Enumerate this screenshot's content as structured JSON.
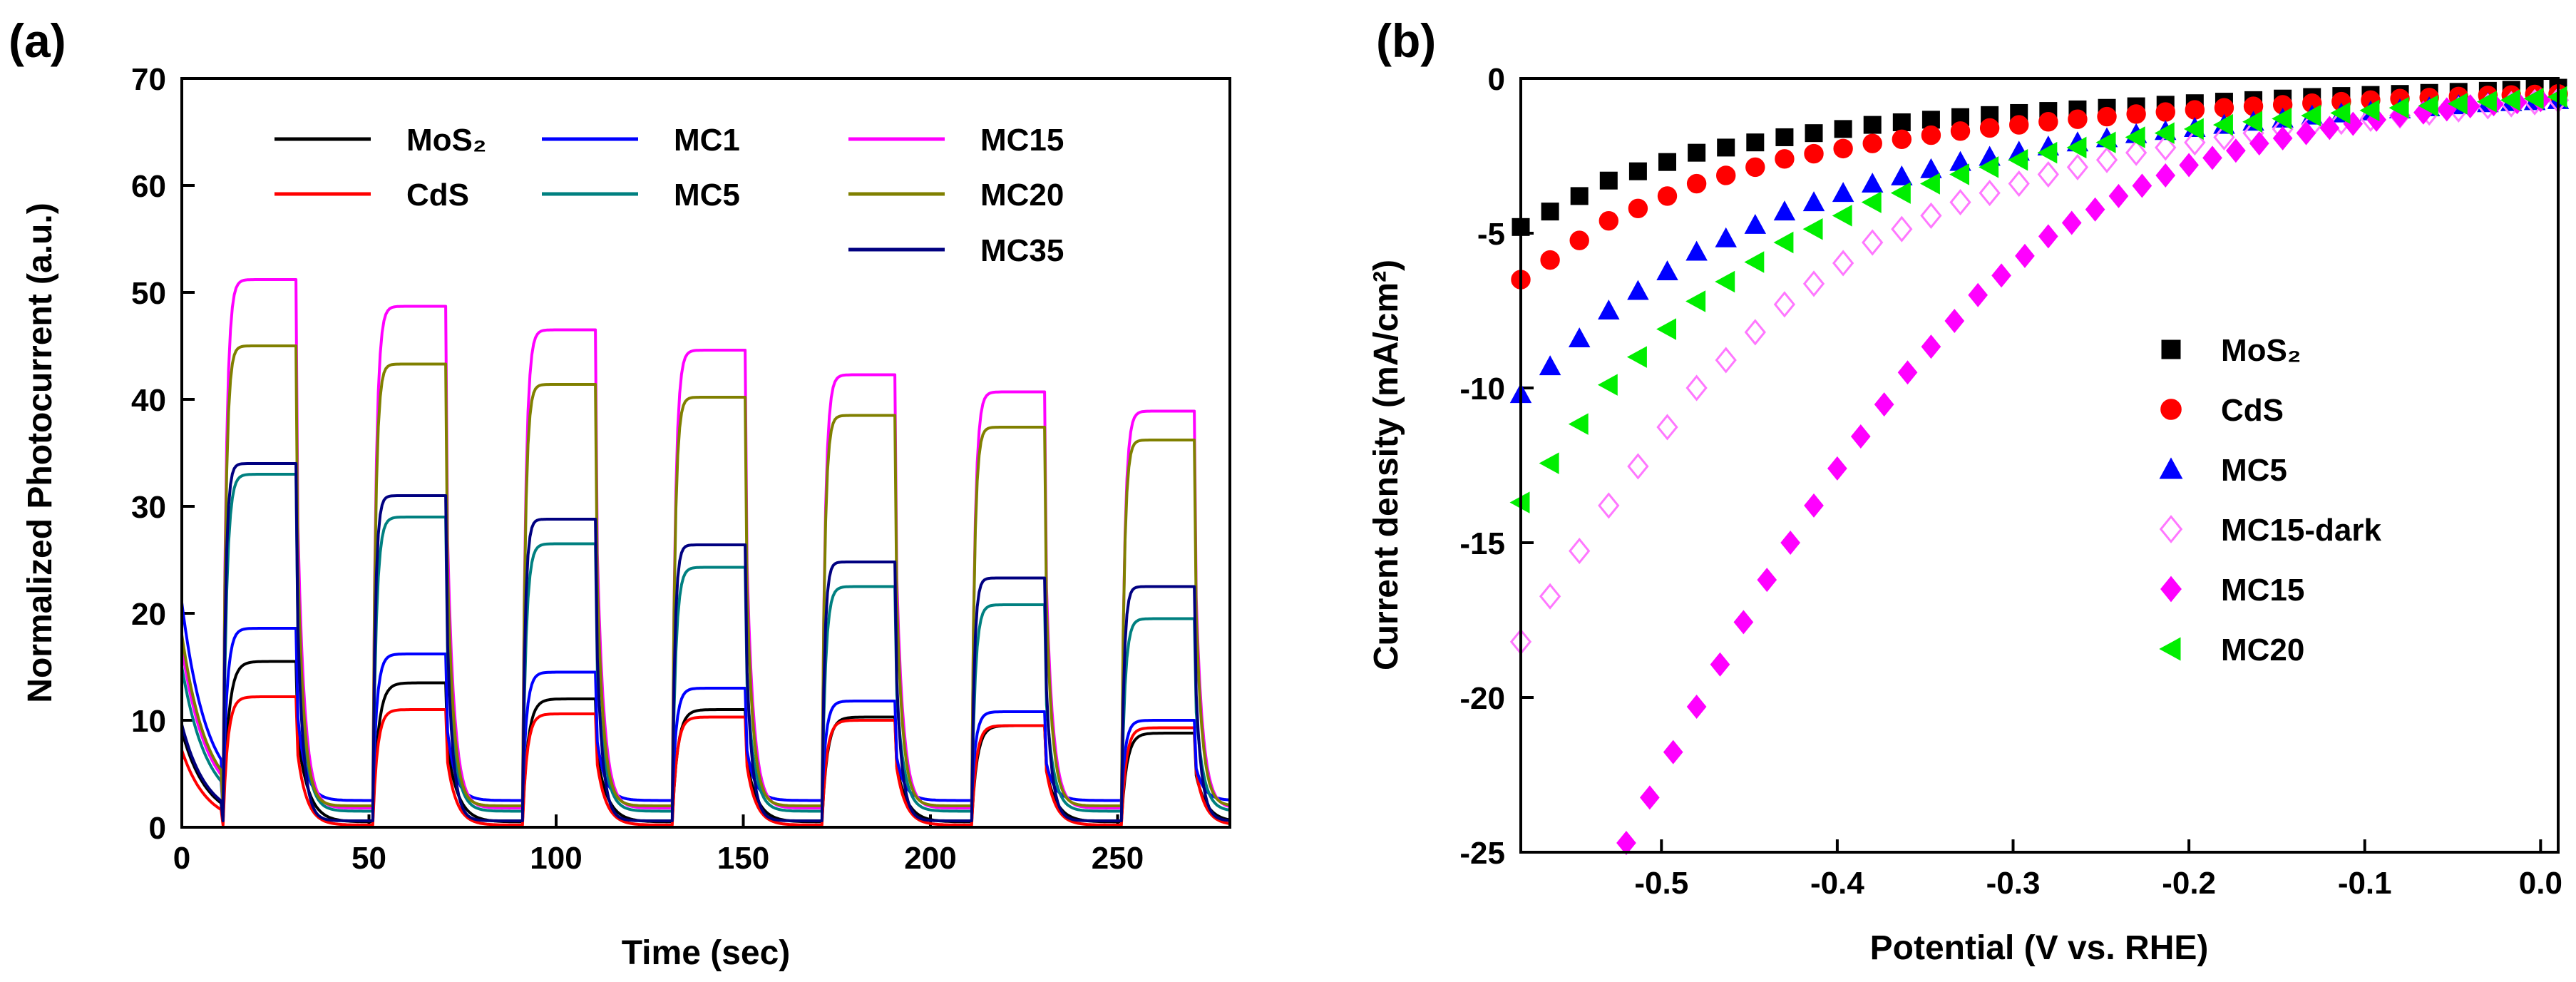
{
  "chart_data": [
    {
      "panel_label": "(a)",
      "type": "line",
      "title": "",
      "xlabel": "Time (sec)",
      "ylabel": "Normalized Photocurrent (a.u.)",
      "xlim": [
        0,
        280
      ],
      "ylim": [
        0,
        70
      ],
      "x_ticks": [
        0,
        50,
        100,
        150,
        200,
        250
      ],
      "x_tick_labels": [
        "0",
        "50",
        "100",
        "150",
        "200",
        "250"
      ],
      "y_ticks": [
        0,
        10,
        20,
        30,
        40,
        50,
        60,
        70
      ],
      "y_tick_labels": [
        "0",
        "10",
        "20",
        "30",
        "40",
        "50",
        "60",
        "70"
      ],
      "legend_position": "top",
      "light_on_sec": [
        [
          11,
          31
        ],
        [
          51,
          71
        ],
        [
          91,
          111
        ],
        [
          131,
          151
        ],
        [
          171,
          191
        ],
        [
          211,
          231
        ],
        [
          251,
          271
        ]
      ],
      "series": [
        {
          "name": "MoS₂",
          "color": "#000000",
          "off_level": 0.5,
          "on_values": [
            15.5,
            13.5,
            12.0,
            11.0,
            10.3,
            9.5,
            8.8
          ]
        },
        {
          "name": "CdS",
          "color": "#ff0000",
          "off_level": 0.2,
          "on_values": [
            12.2,
            11.0,
            10.6,
            10.3,
            10.0,
            9.5,
            9.3
          ]
        },
        {
          "name": "MC1",
          "color": "#0000ff",
          "off_level": 2.5,
          "on_values": [
            18.6,
            16.2,
            14.5,
            13.0,
            11.8,
            10.8,
            10.0
          ]
        },
        {
          "name": "MC5",
          "color": "#008080",
          "off_level": 1.5,
          "on_values": [
            33.0,
            29.0,
            26.5,
            24.3,
            22.5,
            20.8,
            19.5
          ]
        },
        {
          "name": "MC15",
          "color": "#ff00ff",
          "off_level": 1.8,
          "on_values": [
            51.2,
            48.7,
            46.5,
            44.6,
            42.3,
            40.7,
            38.9
          ]
        },
        {
          "name": "MC20",
          "color": "#808000",
          "off_level": 2.0,
          "on_values": [
            45.0,
            43.3,
            41.4,
            40.2,
            38.5,
            37.4,
            36.2
          ]
        },
        {
          "name": "MC35",
          "color": "#000080",
          "off_level": 0.6,
          "on_values": [
            34.0,
            31.0,
            28.8,
            26.4,
            24.8,
            23.3,
            22.5
          ]
        }
      ]
    },
    {
      "panel_label": "(b)",
      "type": "scatter",
      "title": "",
      "xlabel": "Potential (V vs. RHE)",
      "ylabel": "Current density (mA/cm²)",
      "xlim": [
        -0.58,
        0.01
      ],
      "ylim": [
        -25,
        0
      ],
      "x_ticks": [
        -0.5,
        -0.4,
        -0.3,
        -0.2,
        -0.1,
        0.0
      ],
      "x_tick_labels": [
        "-0.5",
        "-0.4",
        "-0.3",
        "-0.2",
        "-0.1",
        "0.0"
      ],
      "y_ticks": [
        0,
        -5,
        -10,
        -15,
        -20,
        -25
      ],
      "y_tick_labels": [
        "0",
        "-5",
        "-10",
        "-15",
        "-20",
        "-25"
      ],
      "legend_position": "center-right",
      "series": [
        {
          "name": "MoS₂",
          "marker": "square",
          "color": "#000000",
          "filled": true,
          "x": [
            -0.58,
            -0.53,
            -0.48,
            -0.43,
            -0.38,
            -0.33,
            -0.28,
            -0.23,
            -0.18,
            -0.13,
            -0.08,
            -0.03,
            0.01
          ],
          "y": [
            -4.8,
            -3.3,
            -2.4,
            -1.9,
            -1.5,
            -1.25,
            -1.05,
            -0.9,
            -0.75,
            -0.6,
            -0.5,
            -0.4,
            -0.3
          ]
        },
        {
          "name": "CdS",
          "marker": "circle",
          "color": "#ff0000",
          "filled": true,
          "x": [
            -0.58,
            -0.53,
            -0.48,
            -0.43,
            -0.38,
            -0.33,
            -0.28,
            -0.23,
            -0.18,
            -0.13,
            -0.08,
            -0.03,
            0.01
          ],
          "y": [
            -6.5,
            -4.6,
            -3.4,
            -2.6,
            -2.1,
            -1.7,
            -1.4,
            -1.15,
            -0.95,
            -0.8,
            -0.65,
            -0.55,
            -0.5
          ]
        },
        {
          "name": "MC5",
          "marker": "triangle-up",
          "color": "#0000ff",
          "filled": true,
          "x": [
            -0.58,
            -0.53,
            -0.48,
            -0.43,
            -0.38,
            -0.33,
            -0.28,
            -0.23,
            -0.18,
            -0.13,
            -0.08,
            -0.03,
            0.01
          ],
          "y": [
            -10.2,
            -7.5,
            -5.6,
            -4.3,
            -3.4,
            -2.7,
            -2.2,
            -1.8,
            -1.5,
            -1.2,
            -1.0,
            -0.8,
            -0.7
          ]
        },
        {
          "name": "MC15-dark",
          "marker": "diamond",
          "color": "#ff77ff",
          "filled": false,
          "x": [
            -0.58,
            -0.53,
            -0.48,
            -0.43,
            -0.38,
            -0.33,
            -0.28,
            -0.23,
            -0.18,
            -0.13,
            -0.08,
            -0.03,
            0.01
          ],
          "y": [
            -18.2,
            -13.8,
            -10.0,
            -7.3,
            -5.3,
            -4.0,
            -3.1,
            -2.4,
            -1.9,
            -1.5,
            -1.2,
            -0.9,
            -0.7
          ]
        },
        {
          "name": "MC15",
          "marker": "diamond",
          "color": "#ff00ff",
          "filled": true,
          "x": [
            -0.52,
            -0.48,
            -0.44,
            -0.4,
            -0.36,
            -0.32,
            -0.28,
            -0.24,
            -0.2,
            -0.16,
            -0.12,
            -0.08,
            -0.04,
            0.0
          ],
          "y": [
            -24.7,
            -20.3,
            -16.2,
            -12.6,
            -9.5,
            -7.0,
            -5.1,
            -3.8,
            -2.8,
            -2.1,
            -1.6,
            -1.2,
            -0.9,
            -0.7
          ]
        },
        {
          "name": "MC20",
          "marker": "triangle-left",
          "color": "#00ee00",
          "filled": true,
          "x": [
            -0.58,
            -0.53,
            -0.48,
            -0.43,
            -0.38,
            -0.33,
            -0.28,
            -0.23,
            -0.18,
            -0.13,
            -0.08,
            -0.03,
            0.01
          ],
          "y": [
            -13.7,
            -9.9,
            -7.2,
            -5.3,
            -4.0,
            -3.1,
            -2.4,
            -1.9,
            -1.5,
            -1.2,
            -0.95,
            -0.75,
            -0.6
          ]
        }
      ]
    }
  ]
}
